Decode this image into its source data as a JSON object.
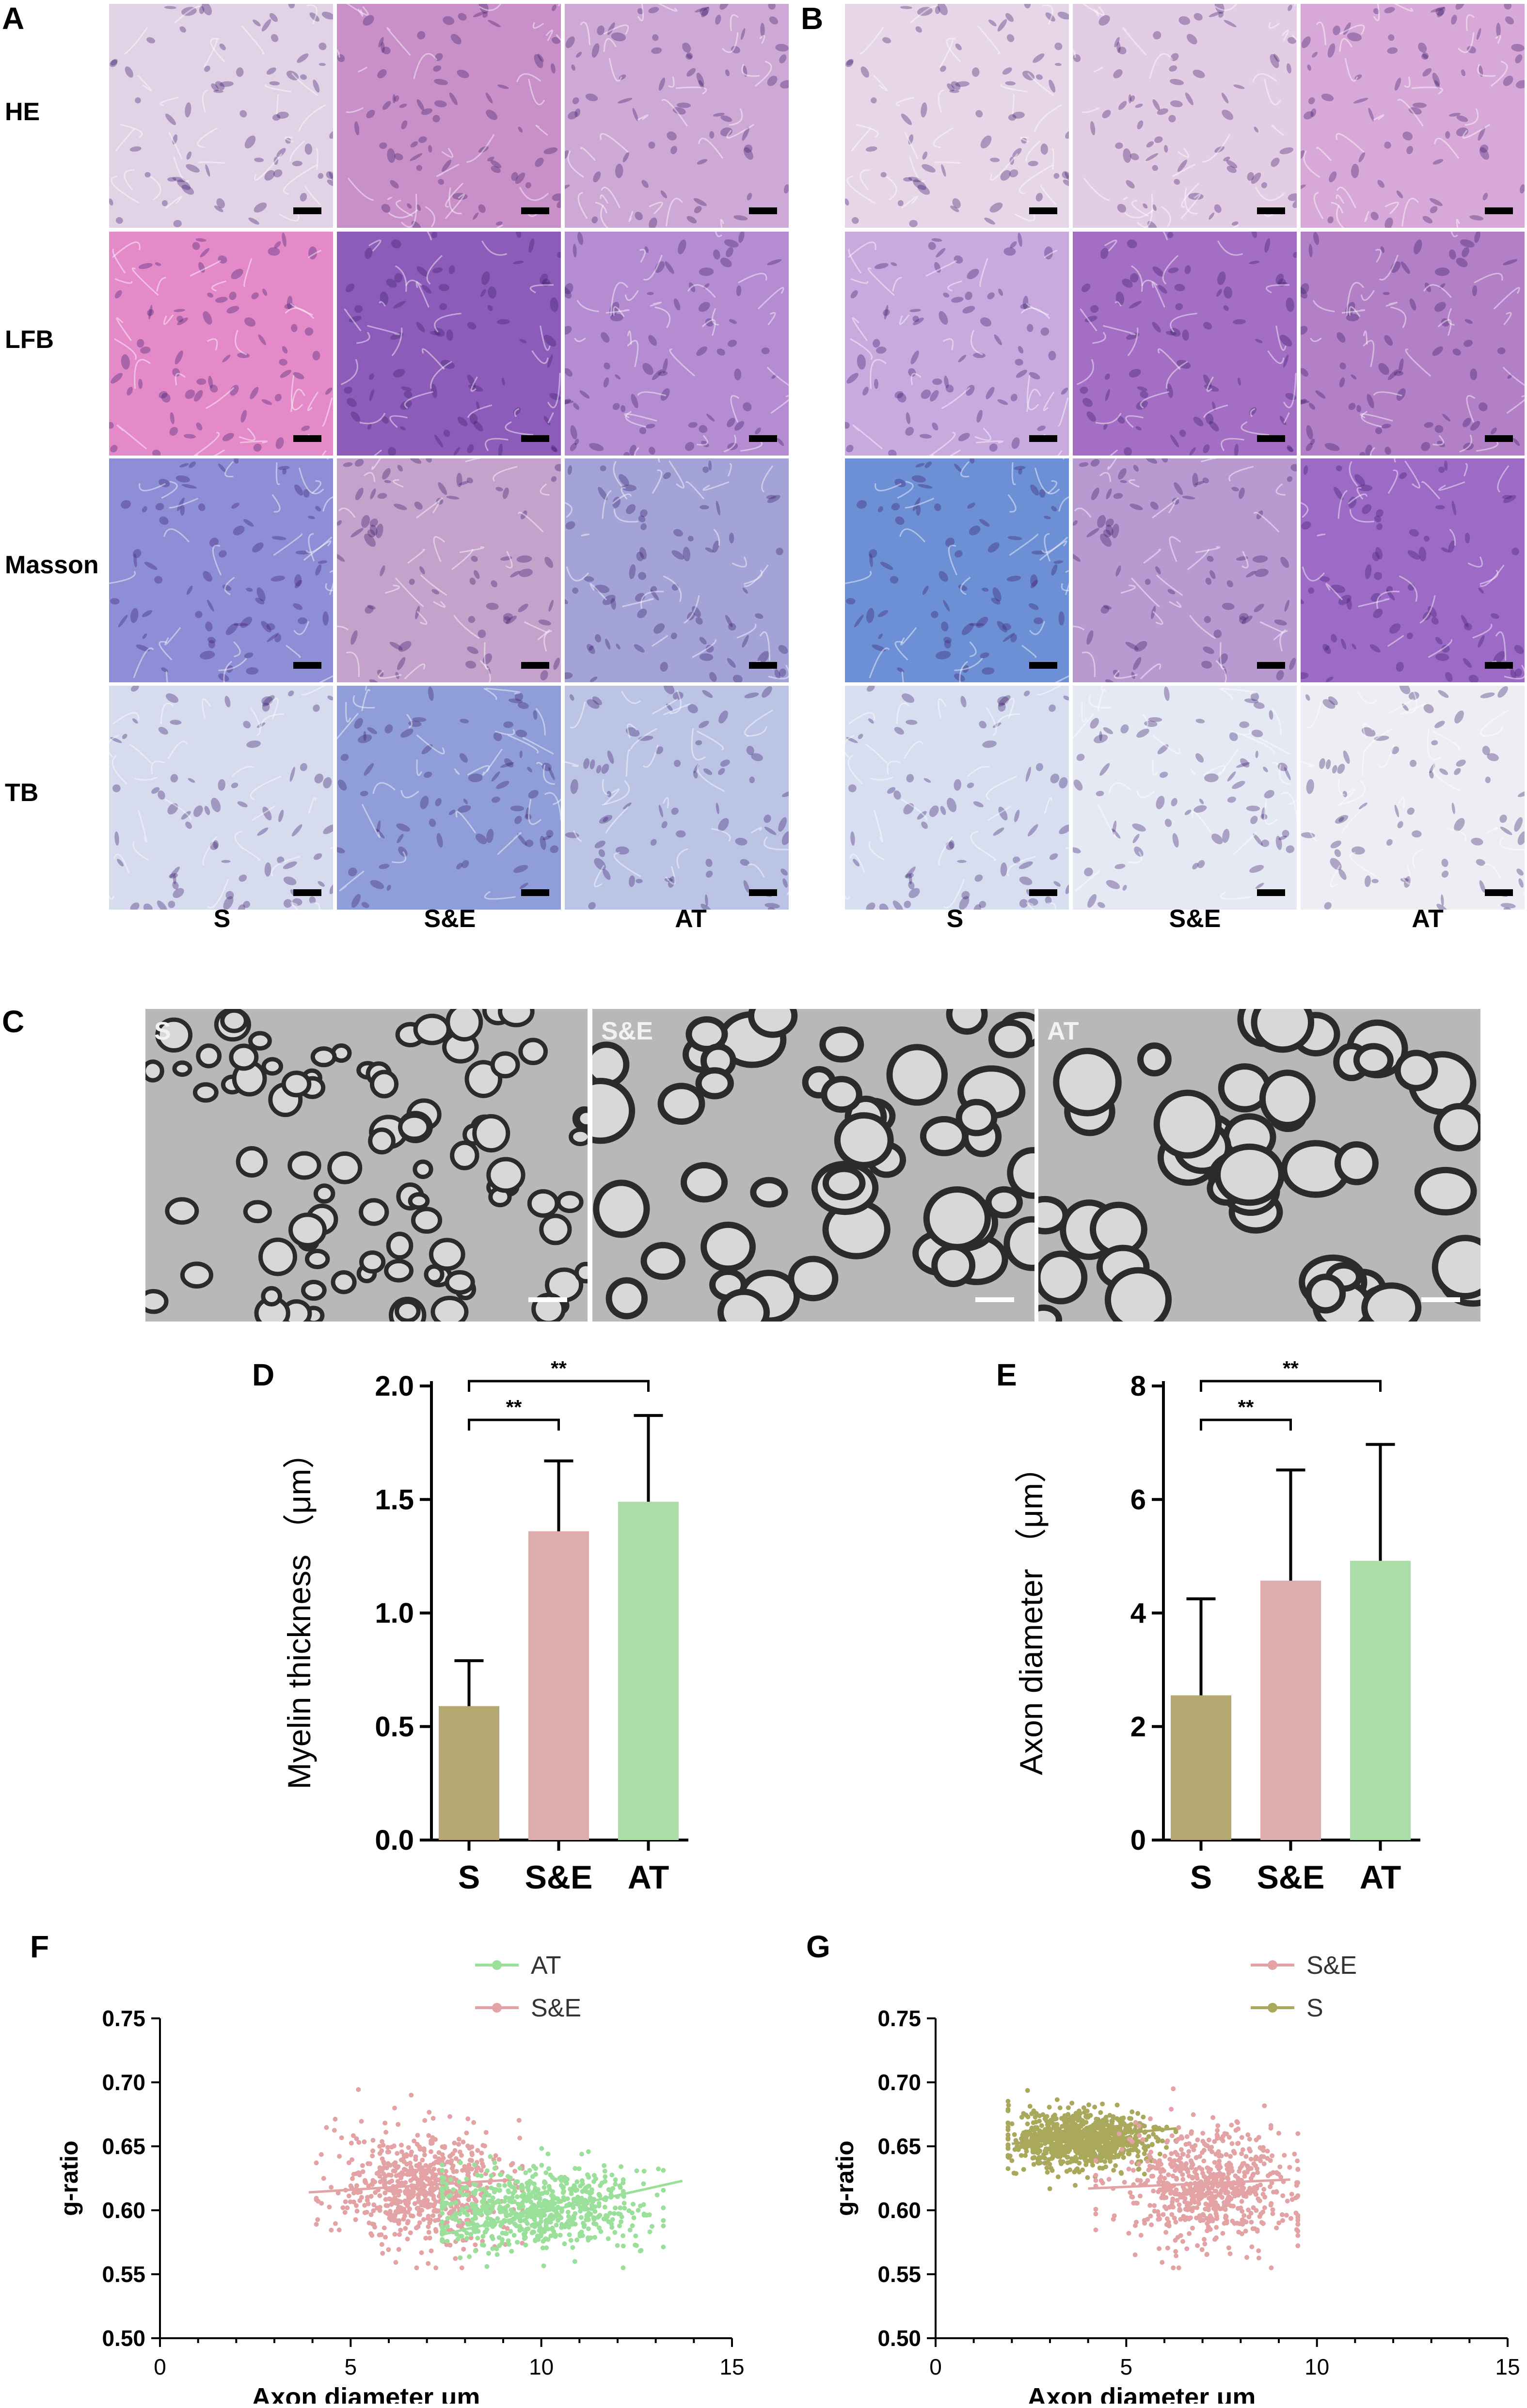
{
  "panels": {
    "A": {
      "letter": "A"
    },
    "B": {
      "letter": "B"
    },
    "C": {
      "letter": "C"
    },
    "D": {
      "letter": "D"
    },
    "E": {
      "letter": "E"
    },
    "F": {
      "letter": "F"
    },
    "G": {
      "letter": "G"
    }
  },
  "histology": {
    "rows": [
      "HE",
      "LFB",
      "Masson",
      "TB"
    ],
    "cols": [
      "S",
      "S&E",
      "AT"
    ],
    "colors": {
      "HE": [
        "#e2d2e6",
        "#c98fc8",
        "#cfa9d6"
      ],
      "LFB": [
        "#e58ac9",
        "#8d5cbb",
        "#b58cd2"
      ],
      "Masson": [
        "#8e8ed6",
        "#c4a2cc",
        "#a4a3d8"
      ],
      "TB": [
        "#d6dbee",
        "#8f9ed8",
        "#bcc4e6"
      ],
      "B_HE": [
        "#e6d6e8",
        "#e3cde4",
        "#d8a9d8"
      ],
      "B_LFB": [
        "#c8aadf",
        "#a46ec4",
        "#b37fc7"
      ],
      "B_Masson": [
        "#6c8fd6",
        "#b99ad0",
        "#9d6bc6"
      ],
      "B_TB": [
        "#d7def0",
        "#e5e9f4",
        "#eceef4"
      ]
    }
  },
  "em": {
    "labels": [
      "S",
      "S&E",
      "AT"
    ]
  },
  "chart_data": [
    {
      "panel": "D",
      "type": "bar",
      "categories": [
        "S",
        "S&E",
        "AT"
      ],
      "values": [
        0.59,
        1.36,
        1.49
      ],
      "errors": [
        0.2,
        0.31,
        0.38
      ],
      "colors": [
        "#b5a871",
        "#dcadac",
        "#a9dea7"
      ],
      "ylabel": "Myelin thickness （μm）",
      "ylim": [
        0,
        2.0
      ],
      "yticks": [
        "0.0",
        "0.5",
        "1.0",
        "1.5",
        "2.0"
      ],
      "significance": [
        {
          "from": 0,
          "to": 1,
          "label": "**"
        },
        {
          "from": 0,
          "to": 2,
          "label": "**"
        }
      ]
    },
    {
      "panel": "E",
      "type": "bar",
      "categories": [
        "S",
        "S&E",
        "AT"
      ],
      "values": [
        2.55,
        4.57,
        4.92
      ],
      "errors": [
        1.7,
        1.95,
        2.05
      ],
      "colors": [
        "#b5a871",
        "#dcadac",
        "#a9dea7"
      ],
      "ylabel": "Axon diameter （μm）",
      "ylim": [
        0,
        8
      ],
      "yticks": [
        "0",
        "2",
        "4",
        "6",
        "8"
      ],
      "significance": [
        {
          "from": 0,
          "to": 1,
          "label": "**"
        },
        {
          "from": 0,
          "to": 2,
          "label": "**"
        }
      ]
    },
    {
      "panel": "F",
      "type": "scatter",
      "xlabel": "Axon diameter   μm",
      "ylabel": "g-ratio",
      "xlim": [
        0,
        15
      ],
      "ylim": [
        0.5,
        0.75
      ],
      "xticks": [
        "0",
        "5",
        "10",
        "15"
      ],
      "yticks": [
        "0.50",
        "0.55",
        "0.60",
        "0.65",
        "0.70",
        "0.75"
      ],
      "legend": "top-right",
      "series": [
        {
          "name": "AT",
          "color": "#9be09a",
          "cluster": {
            "xmean": 9.8,
            "xsd": 1.4,
            "ymean": 0.601,
            "ysd": 0.016,
            "xmin": 7.4,
            "xmax": 13.2
          },
          "fit": [
            [
              7.4,
              0.581
            ],
            [
              13.7,
              0.623
            ]
          ],
          "n": 700
        },
        {
          "name": "S&E",
          "color": "#e3a3a5",
          "cluster": {
            "xmean": 6.9,
            "xsd": 1.1,
            "ymean": 0.617,
            "ysd": 0.022,
            "xmin": 4.1,
            "xmax": 9.5
          },
          "fit": [
            [
              3.9,
              0.614
            ],
            [
              9.3,
              0.624
            ]
          ],
          "n": 700
        }
      ]
    },
    {
      "panel": "G",
      "type": "scatter",
      "xlabel": "Axon diameter μm",
      "ylabel": "g-ratio",
      "xlim": [
        0,
        15
      ],
      "ylim": [
        0.5,
        0.75
      ],
      "xticks": [
        "0",
        "5",
        "10",
        "15"
      ],
      "yticks": [
        "0.50",
        "0.55",
        "0.60",
        "0.65",
        "0.70",
        "0.75"
      ],
      "legend": "top-right",
      "series": [
        {
          "name": "S&E",
          "color": "#e3a3a5",
          "cluster": {
            "xmean": 7.2,
            "xsd": 1.1,
            "ymean": 0.618,
            "ysd": 0.022,
            "xmin": 4.2,
            "xmax": 9.5
          },
          "fit": [
            [
              4.0,
              0.617
            ],
            [
              9.3,
              0.624
            ]
          ],
          "n": 700
        },
        {
          "name": "S",
          "color": "#aaa85a",
          "cluster": {
            "xmean": 3.8,
            "xsd": 0.9,
            "ymean": 0.655,
            "ysd": 0.011,
            "xmin": 1.9,
            "xmax": 6.3
          },
          "fit": [
            [
              2.0,
              0.652
            ],
            [
              6.3,
              0.664
            ]
          ],
          "n": 900
        }
      ]
    }
  ]
}
